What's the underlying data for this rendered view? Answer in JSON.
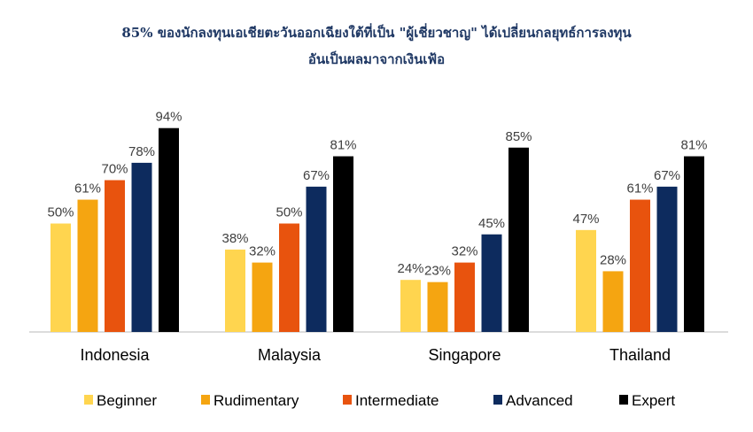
{
  "chart_data": {
    "type": "bar",
    "title_line1": "85% ของนักลงทุนเอเชียตะวันออกเฉียงใต้ที่เป็น \"ผู้เชี่ยวชาญ\" ได้เปลี่ยนกลยุทธ์การลงทุน",
    "title_line2": "อันเป็นผลมาจากเงินเฟ้อ",
    "categories": [
      "Indonesia",
      "Malaysia",
      "Singapore",
      "Thailand"
    ],
    "series": [
      {
        "name": "Beginner",
        "color": "#ffd54f",
        "values": [
          50,
          38,
          24,
          47
        ]
      },
      {
        "name": "Rudimentary",
        "color": "#f5a511",
        "values": [
          61,
          32,
          23,
          28
        ]
      },
      {
        "name": "Intermediate",
        "color": "#e8530e",
        "values": [
          70,
          50,
          32,
          61
        ]
      },
      {
        "name": "Advanced",
        "color": "#0d2b5e",
        "values": [
          78,
          67,
          45,
          67
        ]
      },
      {
        "name": "Expert",
        "color": "#000000",
        "values": [
          94,
          81,
          85,
          81
        ]
      }
    ],
    "value_suffix": "%",
    "ylim": [
      0,
      100
    ],
    "grid": false,
    "legend_position": "bottom"
  }
}
